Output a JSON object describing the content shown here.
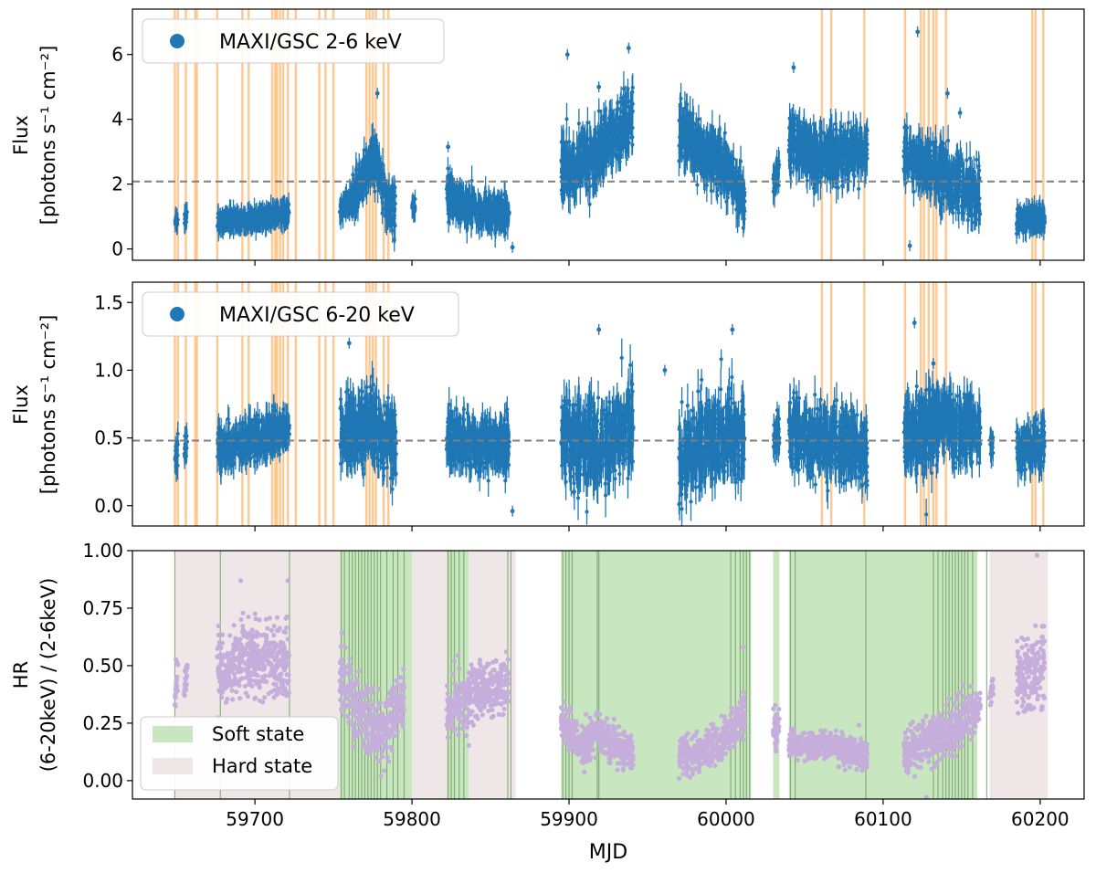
{
  "chart_data": [
    {
      "type": "scatter",
      "panel": "top",
      "ylabel_line1": "Flux",
      "ylabel_line2": "[photons s⁻¹ cm⁻²]",
      "xlim": [
        59622,
        60228
      ],
      "ylim": [
        -0.35,
        7.4
      ],
      "yticks": [
        0,
        2,
        4,
        6
      ],
      "legend": {
        "label": "MAXI/GSC 2-6 keV",
        "placement": "top-left"
      },
      "mean_line": 2.08,
      "series_color": "#1f77b4",
      "marker_line_color": "#ffbf80",
      "orange_lines": [
        59649,
        59651,
        59656,
        59662,
        59663,
        59676,
        59692,
        59696,
        59711,
        59713,
        59714,
        59716,
        59718,
        59721,
        59726,
        59741,
        59745,
        59750,
        59771,
        59773,
        59775,
        59777,
        59782,
        59785,
        60061,
        60067,
        60088,
        60114,
        60124,
        60126,
        60129,
        60132,
        60134,
        60140,
        60195,
        60197,
        60202
      ],
      "segments": [
        {
          "start": 59649,
          "end": 59651,
          "shape": [
            [
              0,
              0.85
            ],
            [
              1,
              0.9
            ]
          ],
          "noise": 0.08
        },
        {
          "start": 59655,
          "end": 59657,
          "shape": [
            [
              0,
              0.95
            ],
            [
              1,
              1.05
            ]
          ],
          "noise": 0.1
        },
        {
          "start": 59676,
          "end": 59722,
          "shape": [
            [
              0,
              0.85
            ],
            [
              0.5,
              0.9
            ],
            [
              1,
              1.15
            ]
          ],
          "noise": 0.12
        },
        {
          "start": 59754,
          "end": 59762,
          "shape": [
            [
              0,
              1.2
            ],
            [
              1,
              1.45
            ]
          ],
          "noise": 0.15
        },
        {
          "start": 59762,
          "end": 59790,
          "shape": [
            [
              0,
              1.5
            ],
            [
              0.2,
              2.1
            ],
            [
              0.45,
              2.9
            ],
            [
              0.6,
              2.5
            ],
            [
              0.75,
              1.5
            ],
            [
              1,
              1.2
            ]
          ],
          "noise": 0.35
        },
        {
          "start": 59800,
          "end": 59802,
          "shape": [
            [
              0,
              1.3
            ],
            [
              1,
              1.3
            ]
          ],
          "noise": 0.1
        },
        {
          "start": 59822,
          "end": 59862,
          "shape": [
            [
              0,
              1.7
            ],
            [
              0.3,
              1.3
            ],
            [
              0.6,
              1.2
            ],
            [
              1,
              1.1
            ]
          ],
          "noise": 0.25
        },
        {
          "start": 59895,
          "end": 59941,
          "shape": [
            [
              0,
              2.4
            ],
            [
              0.4,
              2.8
            ],
            [
              0.8,
              3.5
            ],
            [
              1,
              4.0
            ]
          ],
          "noise": 0.45
        },
        {
          "start": 59970,
          "end": 60012,
          "shape": [
            [
              0,
              3.5
            ],
            [
              0.3,
              3.0
            ],
            [
              0.7,
              2.6
            ],
            [
              1,
              1.4
            ]
          ],
          "noise": 0.4
        },
        {
          "start": 60030,
          "end": 60034,
          "shape": [
            [
              0,
              2.2
            ],
            [
              1,
              2.4
            ]
          ],
          "noise": 0.2
        },
        {
          "start": 60040,
          "end": 60090,
          "shape": [
            [
              0,
              3.3
            ],
            [
              0.4,
              2.8
            ],
            [
              0.7,
              2.9
            ],
            [
              1,
              3.2
            ]
          ],
          "noise": 0.4
        },
        {
          "start": 60113,
          "end": 60162,
          "shape": [
            [
              0,
              3.0
            ],
            [
              0.3,
              2.6
            ],
            [
              0.6,
              2.1
            ],
            [
              1,
              1.6
            ]
          ],
          "noise": 0.4
        },
        {
          "start": 60185,
          "end": 60203,
          "shape": [
            [
              0,
              0.85
            ],
            [
              1,
              1.0
            ]
          ],
          "noise": 0.15
        }
      ],
      "outliers": [
        [
          59899,
          6.0
        ],
        [
          59919,
          5.0
        ],
        [
          59938,
          6.2
        ],
        [
          60043,
          5.6
        ],
        [
          60122,
          6.7
        ],
        [
          60117,
          0.1
        ],
        [
          59864,
          0.05
        ],
        [
          59823,
          3.15
        ],
        [
          60141,
          4.8
        ],
        [
          60149,
          4.2
        ],
        [
          59778,
          4.8
        ]
      ]
    },
    {
      "type": "scatter",
      "panel": "middle",
      "ylabel_line1": "Flux",
      "ylabel_line2": "[photons s⁻¹ cm⁻²]",
      "xlim": [
        59622,
        60228
      ],
      "ylim": [
        -0.15,
        1.65
      ],
      "yticks": [
        0.0,
        0.5,
        1.0,
        1.5
      ],
      "ytick_labels": [
        "0.0",
        "0.5",
        "1.0",
        "1.5"
      ],
      "legend": {
        "label": "MAXI/GSC 6-20 keV",
        "placement": "top-left"
      },
      "mean_line": 0.48,
      "series_color": "#1f77b4",
      "marker_line_color": "#ffbf80",
      "orange_lines": [
        59649,
        59651,
        59656,
        59662,
        59663,
        59676,
        59692,
        59696,
        59711,
        59713,
        59714,
        59716,
        59718,
        59721,
        59726,
        59741,
        59745,
        59750,
        59771,
        59773,
        59775,
        59777,
        59782,
        59785,
        60061,
        60067,
        60088,
        60114,
        60124,
        60126,
        60129,
        60132,
        60134,
        60140,
        60195,
        60197,
        60202
      ],
      "segments": [
        {
          "start": 59649,
          "end": 59651,
          "shape": [
            [
              0,
              0.35
            ],
            [
              1,
              0.4
            ]
          ],
          "noise": 0.06
        },
        {
          "start": 59655,
          "end": 59657,
          "shape": [
            [
              0,
              0.42
            ],
            [
              1,
              0.45
            ]
          ],
          "noise": 0.05
        },
        {
          "start": 59676,
          "end": 59722,
          "shape": [
            [
              0,
              0.42
            ],
            [
              0.5,
              0.5
            ],
            [
              1,
              0.55
            ]
          ],
          "noise": 0.07
        },
        {
          "start": 59754,
          "end": 59790,
          "shape": [
            [
              0,
              0.55
            ],
            [
              0.5,
              0.6
            ],
            [
              1,
              0.45
            ]
          ],
          "noise": 0.12
        },
        {
          "start": 59822,
          "end": 59862,
          "shape": [
            [
              0,
              0.5
            ],
            [
              0.5,
              0.45
            ],
            [
              1,
              0.45
            ]
          ],
          "noise": 0.1
        },
        {
          "start": 59895,
          "end": 59941,
          "shape": [
            [
              0,
              0.5
            ],
            [
              0.5,
              0.45
            ],
            [
              1,
              0.55
            ]
          ],
          "noise": 0.15
        },
        {
          "start": 59970,
          "end": 60012,
          "shape": [
            [
              0,
              0.35
            ],
            [
              0.5,
              0.5
            ],
            [
              1,
              0.55
            ]
          ],
          "noise": 0.15
        },
        {
          "start": 60030,
          "end": 60034,
          "shape": [
            [
              0,
              0.5
            ],
            [
              1,
              0.55
            ]
          ],
          "noise": 0.06
        },
        {
          "start": 60040,
          "end": 60090,
          "shape": [
            [
              0,
              0.55
            ],
            [
              0.5,
              0.45
            ],
            [
              1,
              0.4
            ]
          ],
          "noise": 0.12
        },
        {
          "start": 60113,
          "end": 60162,
          "shape": [
            [
              0,
              0.5
            ],
            [
              0.5,
              0.6
            ],
            [
              1,
              0.55
            ]
          ],
          "noise": 0.13
        },
        {
          "start": 60168,
          "end": 60170,
          "shape": [
            [
              0,
              0.45
            ],
            [
              1,
              0.45
            ]
          ],
          "noise": 0.04
        },
        {
          "start": 60185,
          "end": 60203,
          "shape": [
            [
              0,
              0.42
            ],
            [
              1,
              0.45
            ]
          ],
          "noise": 0.08
        }
      ],
      "outliers": [
        [
          59760,
          1.2
        ],
        [
          59919,
          1.3
        ],
        [
          59961,
          1.0
        ],
        [
          60004,
          1.3
        ],
        [
          60120,
          1.35
        ],
        [
          59864,
          -0.04
        ],
        [
          60132,
          1.05
        ],
        [
          59903,
          0.1
        ]
      ]
    },
    {
      "type": "scatter",
      "panel": "bottom",
      "xlabel": "MJD",
      "ylabel_line1": "HR",
      "ylabel_line2": "(6-20keV) / (2-6keV)",
      "xlim": [
        59622,
        60228
      ],
      "xticks": [
        59700,
        59800,
        59900,
        60000,
        60100,
        60200
      ],
      "ylim": [
        -0.08,
        1.0
      ],
      "yticks": [
        0.0,
        0.25,
        0.5,
        0.75,
        1.0
      ],
      "ytick_labels": [
        "0.00",
        "0.25",
        "0.50",
        "0.75",
        "1.00"
      ],
      "legend": [
        {
          "label": "Soft state",
          "color": "#c8e6c0"
        },
        {
          "label": "Hard state",
          "color": "#efe7e7"
        }
      ],
      "legend_placement": "lower-left",
      "series_color": "#c5aedb",
      "hard_bands": [
        [
          59649,
          59754
        ],
        [
          59800,
          59822
        ],
        [
          59836,
          59866
        ],
        [
          60168,
          60205
        ]
      ],
      "soft_bands": [
        [
          59754,
          59800
        ],
        [
          59822,
          59836
        ],
        [
          59895,
          60016
        ],
        [
          60030,
          60034
        ],
        [
          60040,
          60160
        ]
      ],
      "soft_lines": [
        59649,
        59678,
        59722,
        59755,
        59757,
        59760,
        59762,
        59764,
        59766,
        59768,
        59770,
        59772,
        59774,
        59776,
        59778,
        59780,
        59784,
        59788,
        59791,
        59795,
        59823,
        59825,
        59827,
        59830,
        59833,
        59861,
        59863,
        59896,
        59898,
        59900,
        59902,
        59918,
        59919,
        60003,
        60006,
        60009,
        60011,
        60013,
        60015,
        60041,
        60044,
        60089,
        60132,
        60135,
        60138,
        60140,
        60142,
        60144,
        60146,
        60148,
        60150,
        60152,
        60154,
        60157,
        60166
      ],
      "segments": [
        {
          "start": 59649,
          "end": 59651,
          "shape": [
            [
              0,
              0.35
            ],
            [
              1,
              0.45
            ]
          ],
          "noise": 0.05
        },
        {
          "start": 59655,
          "end": 59657,
          "shape": [
            [
              0,
              0.42
            ],
            [
              1,
              0.45
            ]
          ],
          "noise": 0.03
        },
        {
          "start": 59676,
          "end": 59722,
          "shape": [
            [
              0,
              0.48
            ],
            [
              0.5,
              0.55
            ],
            [
              1,
              0.5
            ]
          ],
          "noise": 0.08
        },
        {
          "start": 59754,
          "end": 59795,
          "shape": [
            [
              0,
              0.45
            ],
            [
              0.3,
              0.3
            ],
            [
              0.6,
              0.2
            ],
            [
              1,
              0.35
            ]
          ],
          "noise": 0.07
        },
        {
          "start": 59822,
          "end": 59862,
          "shape": [
            [
              0,
              0.3
            ],
            [
              0.5,
              0.38
            ],
            [
              1,
              0.42
            ]
          ],
          "noise": 0.06
        },
        {
          "start": 59895,
          "end": 59941,
          "shape": [
            [
              0,
              0.25
            ],
            [
              0.3,
              0.15
            ],
            [
              0.5,
              0.2
            ],
            [
              1,
              0.12
            ]
          ],
          "noise": 0.04
        },
        {
          "start": 59970,
          "end": 60012,
          "shape": [
            [
              0,
              0.1
            ],
            [
              0.6,
              0.15
            ],
            [
              1,
              0.3
            ]
          ],
          "noise": 0.04
        },
        {
          "start": 60030,
          "end": 60034,
          "shape": [
            [
              0,
              0.2
            ],
            [
              1,
              0.25
            ]
          ],
          "noise": 0.04
        },
        {
          "start": 60040,
          "end": 60090,
          "shape": [
            [
              0,
              0.15
            ],
            [
              0.5,
              0.16
            ],
            [
              1,
              0.1
            ]
          ],
          "noise": 0.03
        },
        {
          "start": 60113,
          "end": 60162,
          "shape": [
            [
              0,
              0.12
            ],
            [
              0.5,
              0.2
            ],
            [
              1,
              0.32
            ]
          ],
          "noise": 0.05
        },
        {
          "start": 60168,
          "end": 60170,
          "shape": [
            [
              0,
              0.38
            ],
            [
              1,
              0.42
            ]
          ],
          "noise": 0.03
        },
        {
          "start": 60185,
          "end": 60203,
          "shape": [
            [
              0,
              0.45
            ],
            [
              1,
              0.5
            ]
          ],
          "noise": 0.08
        }
      ],
      "outliers": [
        [
          60198,
          0.98
        ],
        [
          59691,
          0.87
        ],
        [
          59721,
          0.87
        ],
        [
          59860,
          0.56
        ],
        [
          60011,
          0.58
        ],
        [
          60167,
          0.36
        ]
      ]
    }
  ]
}
